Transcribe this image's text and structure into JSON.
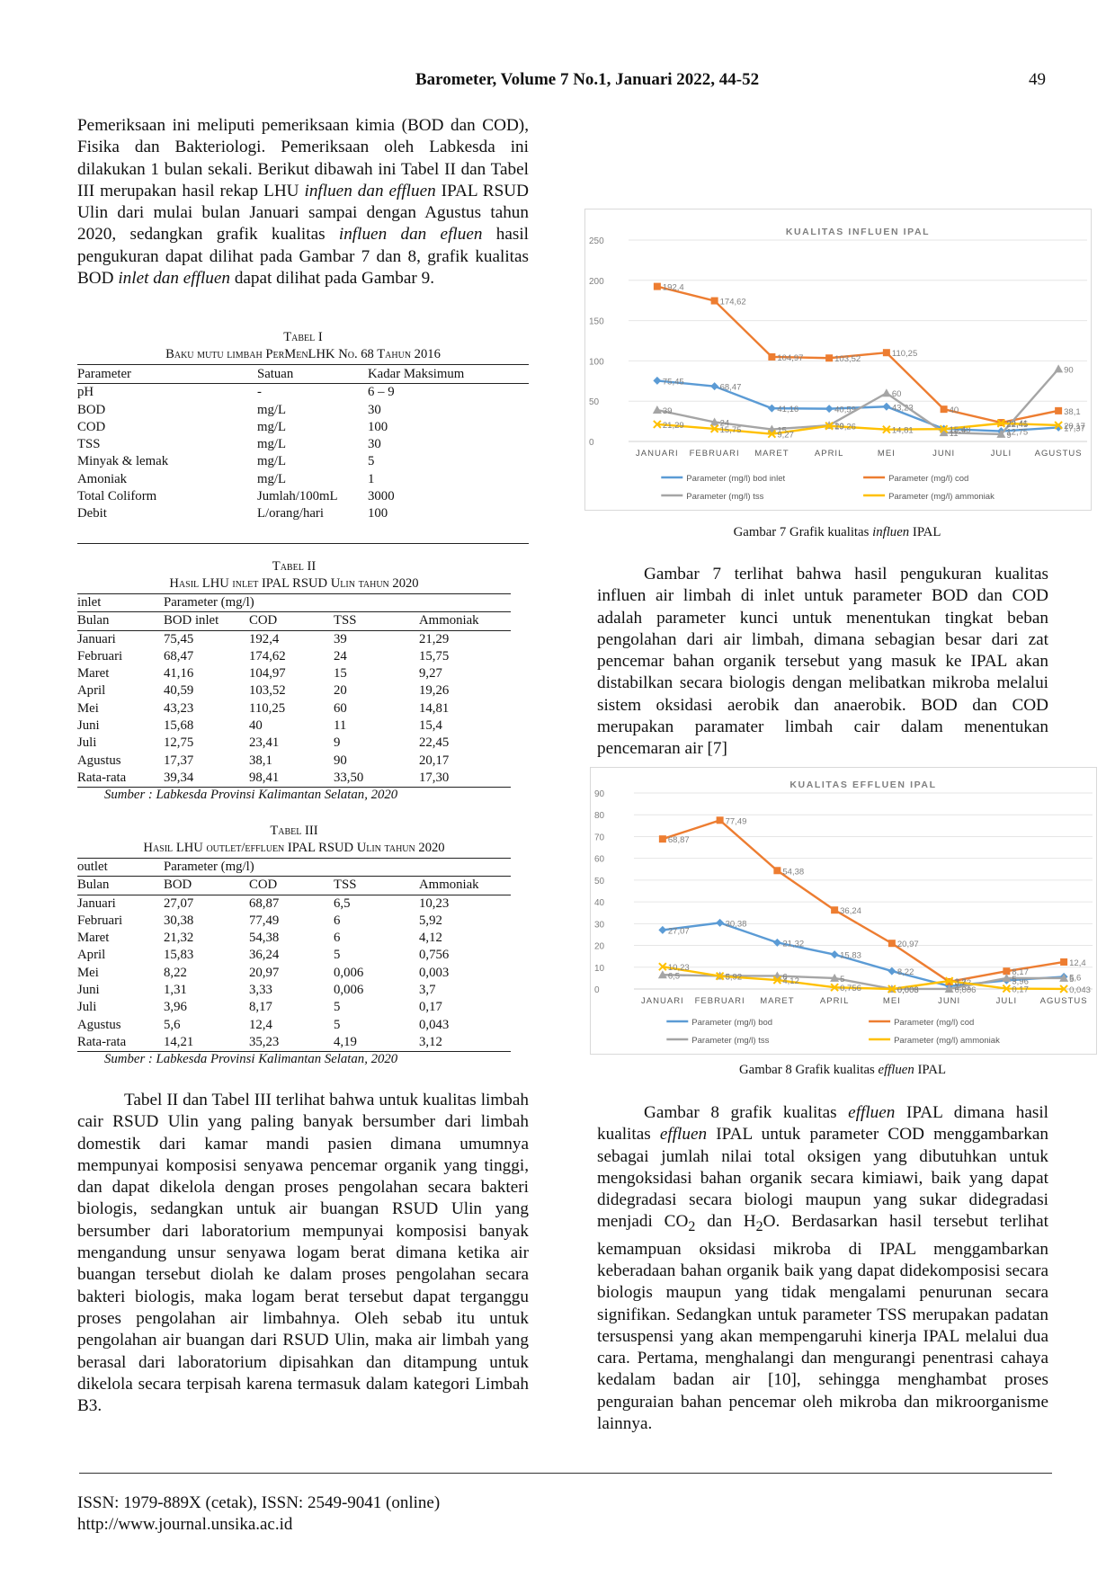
{
  "header": {
    "journal": "Barometer, Volume 7 No.1, Januari 2022, 44-52",
    "page": "49"
  },
  "left_paragraph_1": [
    {
      "t": "Pemeriksaan ini meliputi pemeriksaan kimia (BOD dan COD), Fisika dan Bakteriologi. Pemeriksaan oleh Labkesda ini dilakukan 1 bulan sekali. Berikut dibawah ini Tabel II dan Tabel III merupakan hasil rekap LHU "
    },
    {
      "t": "influen dan effluen",
      "i": true
    },
    {
      "t": " IPAL RSUD Ulin dari mulai bulan Januari sampai dengan Agustus tahun 2020, sedangkan grafik kualitas "
    },
    {
      "t": "influen dan efluen",
      "i": true
    },
    {
      "t": " hasil pengukuran dapat dilihat pada Gambar 7 dan 8, grafik kualitas BOD "
    },
    {
      "t": "inlet dan effluen",
      "i": true
    },
    {
      "t": " dapat dilihat pada Gambar 9."
    }
  ],
  "table1": {
    "label": "Tabel I",
    "title": "Baku mutu limbah PerMenLHK No. 68 Tahun 2016",
    "headers": [
      "Parameter",
      "Satuan",
      "Kadar Maksimum"
    ],
    "rows": [
      [
        "pH",
        "-",
        "6 – 9"
      ],
      [
        "BOD",
        "mg/L",
        "30"
      ],
      [
        "COD",
        "mg/L",
        "100"
      ],
      [
        "TSS",
        "mg/L",
        "30"
      ],
      [
        "Minyak & lemak",
        "mg/L",
        "5"
      ],
      [
        "Amoniak",
        "mg/L",
        "1"
      ],
      [
        "Total Coliform",
        "Jumlah/100mL",
        "3000"
      ],
      [
        "Debit",
        "L/orang/hari",
        "100"
      ]
    ]
  },
  "table2": {
    "label": "Tabel II",
    "title": "Hasil LHU inlet IPAL RSUD Ulin tahun 2020",
    "group": [
      "inlet",
      "Parameter (mg/l)"
    ],
    "headers": [
      "Bulan",
      "BOD inlet",
      "COD",
      "TSS",
      "Ammoniak"
    ],
    "rows": [
      [
        "Januari",
        "75,45",
        "192,4",
        "39",
        "21,29"
      ],
      [
        "Februari",
        "68,47",
        "174,62",
        "24",
        "15,75"
      ],
      [
        "Maret",
        "41,16",
        "104,97",
        "15",
        "9,27"
      ],
      [
        "April",
        "40,59",
        "103,52",
        "20",
        "19,26"
      ],
      [
        "Mei",
        "43,23",
        "110,25",
        "60",
        "14,81"
      ],
      [
        "Juni",
        "15,68",
        "40",
        "11",
        "15,4"
      ],
      [
        "Juli",
        "12,75",
        "23,41",
        "9",
        "22,45"
      ],
      [
        "Agustus",
        "17,37",
        "38,1",
        "90",
        "20,17"
      ],
      [
        "Rata-rata",
        "39,34",
        "98,41",
        "33,50",
        "17,30"
      ]
    ],
    "source": "Sumber : Labkesda Provinsi Kalimantan Selatan, 2020"
  },
  "table3": {
    "label": "Tabel III",
    "title": "Hasil LHU outlet/effluen IPAL RSUD Ulin tahun 2020",
    "group": [
      "outlet",
      "Parameter (mg/l)"
    ],
    "headers": [
      "Bulan",
      "BOD",
      "COD",
      "TSS",
      "Ammoniak"
    ],
    "rows": [
      [
        "Januari",
        "27,07",
        "68,87",
        "6,5",
        "10,23"
      ],
      [
        "Februari",
        "30,38",
        "77,49",
        "6",
        "5,92"
      ],
      [
        "Maret",
        "21,32",
        "54,38",
        "6",
        "4,12"
      ],
      [
        "April",
        "15,83",
        "36,24",
        "5",
        "0,756"
      ],
      [
        "Mei",
        "8,22",
        "20,97",
        "0,006",
        "0,003"
      ],
      [
        "Juni",
        "1,31",
        "3,33",
        "0,006",
        "3,7"
      ],
      [
        "Juli",
        "3,96",
        "8,17",
        "5",
        "0,17"
      ],
      [
        "Agustus",
        "5,6",
        "12,4",
        "5",
        "0,043"
      ],
      [
        "Rata-rata",
        "14,21",
        "35,23",
        "4,19",
        "3,12"
      ]
    ],
    "source": "Sumber : Labkesda Provinsi Kalimantan Selatan, 2020"
  },
  "left_paragraph_2": "Tabel II dan Tabel III terlihat bahwa untuk kualitas limbah cair RSUD Ulin yang paling banyak bersumber dari limbah domestik dari kamar mandi pasien dimana umumnya mempunyai komposisi senyawa pencemar organik yang tinggi, dan dapat dikelola dengan proses pengolahan secara bakteri biologis, sedangkan untuk air buangan RSUD Ulin yang bersumber dari laboratorium mempunyai komposisi banyak mengandung unsur senyawa logam berat dimana ketika air buangan tersebut diolah ke dalam proses pengolahan secara bakteri biologis, maka logam berat tersebut dapat terganggu proses pengolahan air limbahnya. Oleh sebab itu untuk pengolahan air buangan dari RSUD Ulin, maka air limbah yang berasal dari laboratorium dipisahkan dan ditampung untuk dikelola secara terpisah karena termasuk dalam kategori Limbah B3.",
  "fig7_caption": [
    {
      "t": "Gambar 7 Grafik kualitas "
    },
    {
      "t": "influen",
      "i": true
    },
    {
      "t": " IPAL"
    }
  ],
  "right_paragraph_1": "Gambar 7 terlihat bahwa hasil pengukuran kualitas influen air limbah di inlet untuk parameter BOD dan COD adalah parameter kunci untuk menentukan tingkat beban pengolahan dari air limbah, dimana sebagian besar dari zat pencemar bahan organik tersebut yang masuk ke IPAL akan distabilkan secara biologis dengan melibatkan mikroba melalui sistem oksidasi aerobik dan anaerobik. BOD dan COD merupakan paramater limbah cair dalam menentukan pencemaran air [7]",
  "fig8_caption": [
    {
      "t": "Gambar 8 Grafik kualitas "
    },
    {
      "t": "effluen",
      "i": true
    },
    {
      "t": " IPAL"
    }
  ],
  "right_paragraph_2": [
    {
      "t": "Gambar 8 grafik kualitas "
    },
    {
      "t": "effluen",
      "i": true
    },
    {
      "t": " IPAL dimana hasil kualitas "
    },
    {
      "t": "effluen",
      "i": true
    },
    {
      "t": " IPAL untuk parameter COD menggambarkan sebagai jumlah nilai total oksigen yang dibutuhkan untuk mengoksidasi bahan organik secara kimiawi, baik yang dapat didegradasi secara biologi maupun yang sukar didegradasi menjadi CO"
    },
    {
      "t": "2",
      "sub": true
    },
    {
      "t": " dan H"
    },
    {
      "t": "2",
      "sub": true
    },
    {
      "t": "O. Berdasarkan hasil tersebut terlihat kemampuan oksidasi mikroba di IPAL menggambarkan keberadaan bahan organik baik yang dapat didekomposisi secara biologis maupun yang tidak mengalami penurunan secara signifikan. Sedangkan untuk parameter TSS merupakan padatan tersuspensi yang akan mempengaruhi kinerja IPAL melalui dua cara. Pertama, menghalangi dan mengurangi penentrasi cahaya kedalam badan air [10], sehingga menghambat proses penguraian bahan pencemar oleh mikroba dan mikroorganisme lainnya."
    }
  ],
  "footer": {
    "issn": "ISSN: 1979-889X (cetak), ISSN: 2549-9041 (online)",
    "url": "http://www.journal.unsika.ac.id"
  },
  "colors": {
    "blue": "#5b9bd5",
    "orange": "#ed7d31",
    "gray": "#a5a5a5",
    "yellow": "#ffc000"
  },
  "chart_data": [
    {
      "type": "line",
      "title": "KUALITAS INFLUEN IPAL",
      "categories": [
        "JANUARI",
        "FEBRUARI",
        "MARET",
        "APRIL",
        "MEI",
        "JUNI",
        "JULI",
        "AGUSTUS"
      ],
      "ylim": [
        0,
        250
      ],
      "yticks": [
        "0",
        "50",
        "100",
        "150",
        "200",
        "250"
      ],
      "legend": "bottom",
      "grid": true,
      "series": [
        {
          "name": "Parameter (mg/l) bod inlet",
          "color": "#5b9bd5",
          "marker": "diamond",
          "values": [
            75.45,
            68.47,
            41.16,
            40.59,
            43.23,
            15.68,
            12.75,
            17.37
          ],
          "labels": [
            "75,45",
            "68,47",
            "41,16",
            "40,59",
            "43,23",
            "15,68",
            "12,75",
            "17,37"
          ]
        },
        {
          "name": "Parameter (mg/l) cod",
          "color": "#ed7d31",
          "marker": "square",
          "values": [
            192.4,
            174.62,
            104.97,
            103.52,
            110.25,
            40,
            23.41,
            38.1
          ],
          "labels": [
            "192,4",
            "174,62",
            "104,97",
            "103,52",
            "110,25",
            "40",
            "23,41",
            "38,1"
          ]
        },
        {
          "name": "Parameter (mg/l) tss",
          "color": "#a5a5a5",
          "marker": "triangle",
          "values": [
            39,
            24,
            15,
            20,
            60,
            11,
            9,
            90
          ],
          "labels": [
            "39",
            "24",
            "15",
            "20",
            "60",
            "11",
            "9",
            "90"
          ]
        },
        {
          "name": "Parameter (mg/l) ammoniak",
          "color": "#ffc000",
          "marker": "x",
          "values": [
            21.29,
            15.75,
            9.27,
            19.26,
            14.81,
            15.4,
            22.45,
            20.17
          ],
          "labels": [
            "21,29",
            "15,75",
            "9,27",
            "19,26",
            "14,81",
            "15,4",
            "22,45",
            "20,17"
          ]
        }
      ]
    },
    {
      "type": "line",
      "title": "KUALITAS EFFLUEN IPAL",
      "categories": [
        "JANUARI",
        "FEBRUARI",
        "MARET",
        "APRIL",
        "MEI",
        "JUNI",
        "JULI",
        "AGUSTUS"
      ],
      "ylim": [
        0,
        90
      ],
      "yticks": [
        "0",
        "10",
        "20",
        "30",
        "40",
        "50",
        "60",
        "70",
        "80",
        "90"
      ],
      "legend": "bottom",
      "grid": true,
      "series": [
        {
          "name": "Parameter (mg/l) bod",
          "color": "#5b9bd5",
          "marker": "diamond",
          "values": [
            27.07,
            30.38,
            21.32,
            15.83,
            8.22,
            1.31,
            3.96,
            5.6
          ],
          "labels": [
            "27,07",
            "30,38",
            "21,32",
            "15,83",
            "8,22",
            "1,31",
            "3,96",
            "5,6"
          ]
        },
        {
          "name": "Parameter (mg/l) cod",
          "color": "#ed7d31",
          "marker": "square",
          "values": [
            68.87,
            77.49,
            54.38,
            36.24,
            20.97,
            3.33,
            8.17,
            12.4
          ],
          "labels": [
            "68,87",
            "77,49",
            "54,38",
            "36,24",
            "20,97",
            "3,33",
            "8,17",
            "12,4"
          ]
        },
        {
          "name": "Parameter (mg/l) tss",
          "color": "#a5a5a5",
          "marker": "triangle",
          "values": [
            6.5,
            6,
            6,
            5,
            0.006,
            0.006,
            5,
            5
          ],
          "labels": [
            "6,5",
            "6",
            "6",
            "5",
            "0,006",
            "0,006",
            "5",
            "5"
          ]
        },
        {
          "name": "Parameter (mg/l) ammoniak",
          "color": "#ffc000",
          "marker": "x",
          "values": [
            10.23,
            5.92,
            4.12,
            0.756,
            0.003,
            3.7,
            0.17,
            0.043
          ],
          "labels": [
            "10,23",
            "5,92",
            "4,12",
            "0,756",
            "0,003",
            "3,7",
            "0,17",
            "0,043"
          ]
        }
      ]
    }
  ]
}
